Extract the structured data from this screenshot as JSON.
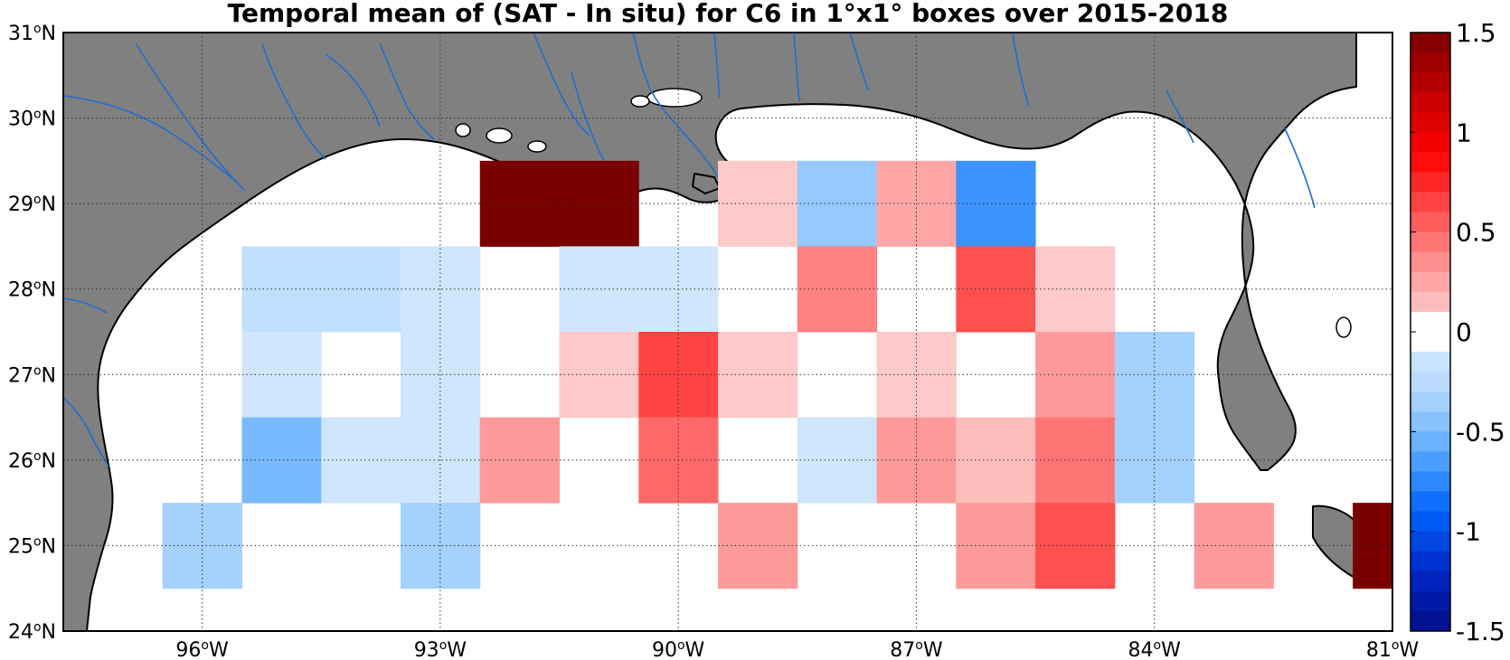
{
  "title": "Temporal mean of (SAT - In situ) for C6 in 1°x1° boxes over 2015-2018",
  "map": {
    "lon_range": [
      -97.75,
      -81
    ],
    "lat_range": [
      24,
      31
    ],
    "land_color": "#808080",
    "water_color": "#ffffff",
    "river_color": "#1f6fd1",
    "grid": "dotted",
    "x_ticks": [
      {
        "value": -96,
        "deg": "96",
        "sup": "o",
        "hem": "W"
      },
      {
        "value": -93,
        "deg": "93",
        "sup": "o",
        "hem": "W"
      },
      {
        "value": -90,
        "deg": "90",
        "sup": "o",
        "hem": "W"
      },
      {
        "value": -87,
        "deg": "87",
        "sup": "o",
        "hem": "W"
      },
      {
        "value": -84,
        "deg": "84",
        "sup": "o",
        "hem": "W"
      },
      {
        "value": -81,
        "deg": "81",
        "sup": "o",
        "hem": "W"
      }
    ],
    "y_ticks": [
      {
        "value": 24,
        "deg": "24",
        "sup": "o",
        "hem": "N"
      },
      {
        "value": 25,
        "deg": "25",
        "sup": "o",
        "hem": "N"
      },
      {
        "value": 26,
        "deg": "26",
        "sup": "o",
        "hem": "N"
      },
      {
        "value": 27,
        "deg": "27",
        "sup": "o",
        "hem": "N"
      },
      {
        "value": 28,
        "deg": "28",
        "sup": "o",
        "hem": "N"
      },
      {
        "value": 29,
        "deg": "29",
        "sup": "o",
        "hem": "N"
      },
      {
        "value": 30,
        "deg": "30",
        "sup": "o",
        "hem": "N"
      },
      {
        "value": 31,
        "deg": "31",
        "sup": "o",
        "hem": "N"
      }
    ]
  },
  "chart_data": {
    "type": "heatmap",
    "title": "Temporal mean of (SAT - In situ) for C6 in 1°x1° boxes over 2015-2018",
    "xlim": [
      -97.75,
      -81
    ],
    "ylim": [
      24,
      31
    ],
    "cell_size_deg": 1,
    "cells": [
      {
        "lon_min": -92.5,
        "lon_max": -91.5,
        "lat_min": 28.5,
        "lat_max": 29.5,
        "value": 1.5
      },
      {
        "lon_min": -91.5,
        "lon_max": -90.5,
        "lat_min": 28.5,
        "lat_max": 29.5,
        "value": 1.5
      },
      {
        "lon_min": -89.5,
        "lon_max": -88.5,
        "lat_min": 28.5,
        "lat_max": 29.5,
        "value": 0.1
      },
      {
        "lon_min": -88.5,
        "lon_max": -87.5,
        "lat_min": 28.5,
        "lat_max": 29.5,
        "value": -0.4
      },
      {
        "lon_min": -87.5,
        "lon_max": -86.5,
        "lat_min": 28.5,
        "lat_max": 29.5,
        "value": 0.25
      },
      {
        "lon_min": -86.5,
        "lon_max": -85.5,
        "lat_min": 28.5,
        "lat_max": 29.5,
        "value": -0.7
      },
      {
        "lon_min": -95.5,
        "lon_max": -94.5,
        "lat_min": 27.5,
        "lat_max": 28.5,
        "value": -0.2
      },
      {
        "lon_min": -94.5,
        "lon_max": -93.5,
        "lat_min": 27.5,
        "lat_max": 28.5,
        "value": -0.2
      },
      {
        "lon_min": -93.5,
        "lon_max": -92.5,
        "lat_min": 27.5,
        "lat_max": 28.5,
        "value": -0.1
      },
      {
        "lon_min": -91.5,
        "lon_max": -90.5,
        "lat_min": 27.5,
        "lat_max": 28.5,
        "value": -0.1
      },
      {
        "lon_min": -90.5,
        "lon_max": -89.5,
        "lat_min": 27.5,
        "lat_max": 28.5,
        "value": -0.1
      },
      {
        "lon_min": -88.5,
        "lon_max": -87.5,
        "lat_min": 27.5,
        "lat_max": 28.5,
        "value": 0.4
      },
      {
        "lon_min": -86.5,
        "lon_max": -85.5,
        "lat_min": 27.5,
        "lat_max": 28.5,
        "value": 0.6
      },
      {
        "lon_min": -85.5,
        "lon_max": -84.5,
        "lat_min": 27.5,
        "lat_max": 28.5,
        "value": 0.1
      },
      {
        "lon_min": -95.5,
        "lon_max": -94.5,
        "lat_min": 26.5,
        "lat_max": 27.5,
        "value": -0.1
      },
      {
        "lon_min": -93.5,
        "lon_max": -92.5,
        "lat_min": 26.5,
        "lat_max": 27.5,
        "value": -0.1
      },
      {
        "lon_min": -91.5,
        "lon_max": -90.5,
        "lat_min": 26.5,
        "lat_max": 27.5,
        "value": 0.1
      },
      {
        "lon_min": -90.5,
        "lon_max": -89.5,
        "lat_min": 26.5,
        "lat_max": 27.5,
        "value": 0.65
      },
      {
        "lon_min": -89.5,
        "lon_max": -88.5,
        "lat_min": 26.5,
        "lat_max": 27.5,
        "value": 0.1
      },
      {
        "lon_min": -87.5,
        "lon_max": -86.5,
        "lat_min": 26.5,
        "lat_max": 27.5,
        "value": 0.1
      },
      {
        "lon_min": -85.5,
        "lon_max": -84.5,
        "lat_min": 26.5,
        "lat_max": 27.5,
        "value": 0.3
      },
      {
        "lon_min": -84.5,
        "lon_max": -83.5,
        "lat_min": 26.5,
        "lat_max": 27.5,
        "value": -0.35
      },
      {
        "lon_min": -95.5,
        "lon_max": -94.5,
        "lat_min": 25.5,
        "lat_max": 26.5,
        "value": -0.5
      },
      {
        "lon_min": -94.5,
        "lon_max": -93.5,
        "lat_min": 25.5,
        "lat_max": 26.5,
        "value": -0.1
      },
      {
        "lon_min": -93.5,
        "lon_max": -92.5,
        "lat_min": 25.5,
        "lat_max": 26.5,
        "value": -0.1
      },
      {
        "lon_min": -92.5,
        "lon_max": -91.5,
        "lat_min": 25.5,
        "lat_max": 26.5,
        "value": 0.3
      },
      {
        "lon_min": -90.5,
        "lon_max": -89.5,
        "lat_min": 25.5,
        "lat_max": 26.5,
        "value": 0.5
      },
      {
        "lon_min": -88.5,
        "lon_max": -87.5,
        "lat_min": 25.5,
        "lat_max": 26.5,
        "value": -0.1
      },
      {
        "lon_min": -87.5,
        "lon_max": -86.5,
        "lat_min": 25.5,
        "lat_max": 26.5,
        "value": 0.3
      },
      {
        "lon_min": -86.5,
        "lon_max": -85.5,
        "lat_min": 25.5,
        "lat_max": 26.5,
        "value": 0.15
      },
      {
        "lon_min": -85.5,
        "lon_max": -84.5,
        "lat_min": 25.5,
        "lat_max": 26.5,
        "value": 0.45
      },
      {
        "lon_min": -84.5,
        "lon_max": -83.5,
        "lat_min": 25.5,
        "lat_max": 26.5,
        "value": -0.35
      },
      {
        "lon_min": -96.5,
        "lon_max": -95.5,
        "lat_min": 24.5,
        "lat_max": 25.5,
        "value": -0.35
      },
      {
        "lon_min": -93.5,
        "lon_max": -92.5,
        "lat_min": 24.5,
        "lat_max": 25.5,
        "value": -0.35
      },
      {
        "lon_min": -89.5,
        "lon_max": -88.5,
        "lat_min": 24.5,
        "lat_max": 25.5,
        "value": 0.3
      },
      {
        "lon_min": -86.5,
        "lon_max": -85.5,
        "lat_min": 24.5,
        "lat_max": 25.5,
        "value": 0.3
      },
      {
        "lon_min": -85.5,
        "lon_max": -84.5,
        "lat_min": 24.5,
        "lat_max": 25.5,
        "value": 0.6
      },
      {
        "lon_min": -83.5,
        "lon_max": -82.5,
        "lat_min": 24.5,
        "lat_max": 25.5,
        "value": 0.3
      },
      {
        "lon_min": -81.5,
        "lon_max": -81.0,
        "lat_min": 24.5,
        "lat_max": 25.5,
        "value": 1.5
      }
    ],
    "colorbar": {
      "range": [
        -1.5,
        1.5
      ],
      "ticks": [
        {
          "value": 1.5,
          "label": "1.5"
        },
        {
          "value": 1,
          "label": "1"
        },
        {
          "value": 0.5,
          "label": "0.5"
        },
        {
          "value": 0,
          "label": "0"
        },
        {
          "value": -0.5,
          "label": "-0.5"
        },
        {
          "value": -1,
          "label": "-1"
        },
        {
          "value": -1.5,
          "label": "-1.5"
        }
      ],
      "steps": 30,
      "neg_colors": [
        "#000c86",
        "#0028c8",
        "#0064ff",
        "#5aaaff",
        "#b4d9ff",
        "#dcedfb"
      ],
      "pos_colors": [
        "#fde0e0",
        "#ff9a9a",
        "#ff5050",
        "#ff0000",
        "#c00000",
        "#7a0000"
      ]
    }
  }
}
